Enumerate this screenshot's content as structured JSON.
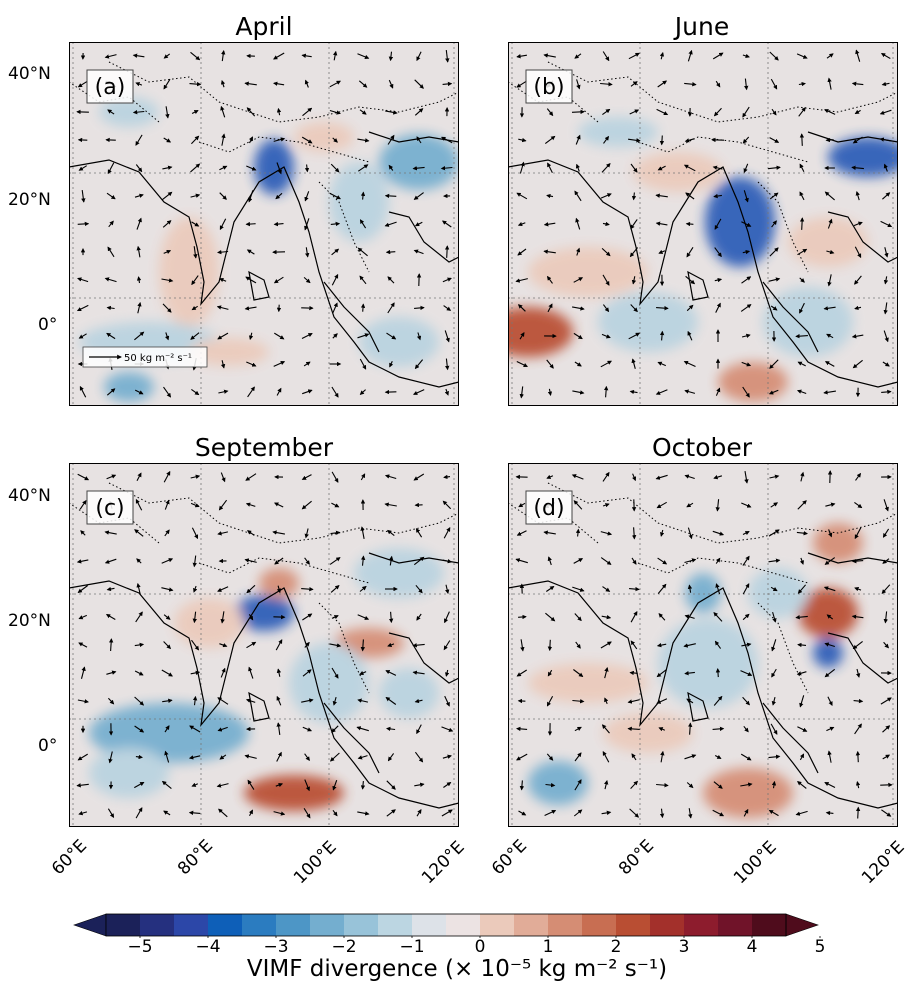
{
  "panels": [
    {
      "title": "April",
      "label": "(a)",
      "scale_label": "50 kg m⁻² s⁻¹"
    },
    {
      "title": "June",
      "label": "(b)"
    },
    {
      "title": "September",
      "label": "(c)"
    },
    {
      "title": "October",
      "label": "(d)"
    }
  ],
  "lat_ticks": [
    "40°N",
    "20°N",
    "0°"
  ],
  "lon_ticks": [
    "60°E",
    "80°E",
    "100°E",
    "120°E"
  ],
  "colorbar": {
    "ticks": [
      "−5",
      "−4",
      "−3",
      "−2",
      "−1",
      "0",
      "1",
      "2",
      "3",
      "4",
      "5"
    ],
    "title": "VIMF divergence (× 10⁻⁵ kg m⁻² s⁻¹)",
    "colors": [
      "#1b2159",
      "#25307f",
      "#2c47a8",
      "#0e5fb8",
      "#2b7cc0",
      "#4d96c6",
      "#74aecf",
      "#98c3d9",
      "#bcd6e2",
      "#dde2e8",
      "#ece3e3",
      "#ebcabb",
      "#e1ac98",
      "#d58d74",
      "#c86e52",
      "#b94e33",
      "#a3302b",
      "#8d1c2d",
      "#701329",
      "#4f0c1c"
    ]
  },
  "map_colors": {
    "background": "#e7e2e2",
    "blue_strong": "#2c5cb7",
    "blue_mid": "#74aecf",
    "blue_light": "#b9d3e0",
    "red_strong": "#b94e33",
    "red_mid": "#d58d74",
    "red_light": "#ebcabb"
  }
}
